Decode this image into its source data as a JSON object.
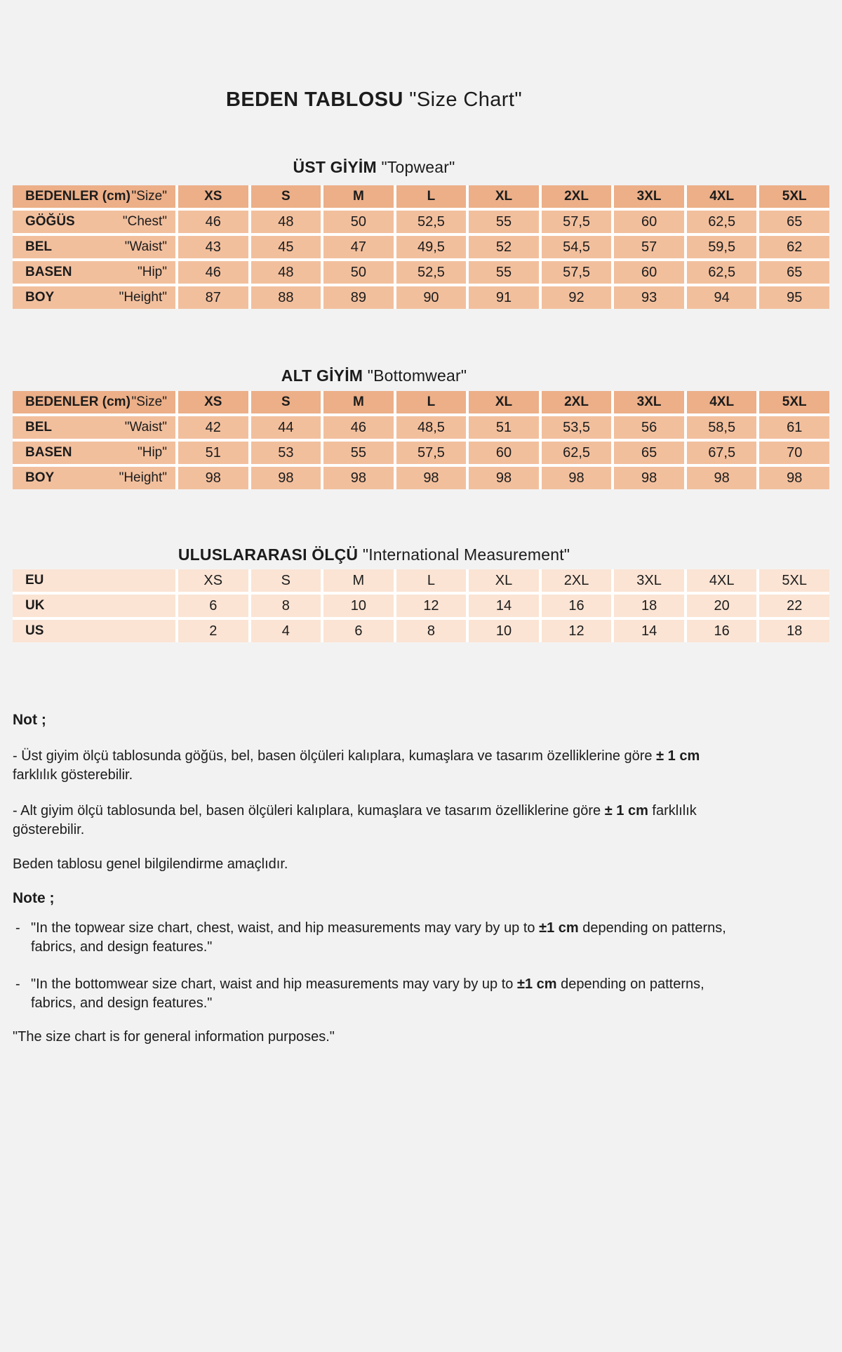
{
  "title": {
    "tr": "BEDEN TABLOSU",
    "en": "\"Size Chart\""
  },
  "sizes": [
    "XS",
    "S",
    "M",
    "L",
    "XL",
    "2XL",
    "3XL",
    "4XL",
    "5XL"
  ],
  "topwear": {
    "heading_tr": "ÜST GİYİM",
    "heading_en": "\"Topwear\"",
    "header_label_tr": "BEDENLER (cm)",
    "header_label_en": "\"Size\"",
    "rows": [
      {
        "label_tr": "GÖĞÜS",
        "label_en": "\"Chest\"",
        "values": [
          "46",
          "48",
          "50",
          "52,5",
          "55",
          "57,5",
          "60",
          "62,5",
          "65"
        ]
      },
      {
        "label_tr": "BEL",
        "label_en": "\"Waist\"",
        "values": [
          "43",
          "45",
          "47",
          "49,5",
          "52",
          "54,5",
          "57",
          "59,5",
          "62"
        ]
      },
      {
        "label_tr": "BASEN",
        "label_en": "\"Hip\"",
        "values": [
          "46",
          "48",
          "50",
          "52,5",
          "55",
          "57,5",
          "60",
          "62,5",
          "65"
        ]
      },
      {
        "label_tr": "BOY",
        "label_en": "\"Height\"",
        "values": [
          "87",
          "88",
          "89",
          "90",
          "91",
          "92",
          "93",
          "94",
          "95"
        ]
      }
    ]
  },
  "bottomwear": {
    "heading_tr": "ALT GİYİM",
    "heading_en": "\"Bottomwear\"",
    "header_label_tr": "BEDENLER (cm)",
    "header_label_en": "\"Size\"",
    "rows": [
      {
        "label_tr": "BEL",
        "label_en": "\"Waist\"",
        "values": [
          "42",
          "44",
          "46",
          "48,5",
          "51",
          "53,5",
          "56",
          "58,5",
          "61"
        ]
      },
      {
        "label_tr": "BASEN",
        "label_en": "\"Hip\"",
        "values": [
          "51",
          "53",
          "55",
          "57,5",
          "60",
          "62,5",
          "65",
          "67,5",
          "70"
        ]
      },
      {
        "label_tr": "BOY",
        "label_en": "\"Height\"",
        "values": [
          "98",
          "98",
          "98",
          "98",
          "98",
          "98",
          "98",
          "98",
          "98"
        ]
      }
    ]
  },
  "international": {
    "heading_tr": "ULUSLARARASI  ÖLÇÜ",
    "heading_en": "\"International Measurement\"",
    "rows": [
      {
        "label": "EU",
        "values": [
          "XS",
          "S",
          "M",
          "L",
          "XL",
          "2XL",
          "3XL",
          "4XL",
          "5XL"
        ]
      },
      {
        "label": "UK",
        "values": [
          "6",
          "8",
          "10",
          "12",
          "14",
          "16",
          "18",
          "20",
          "22"
        ]
      },
      {
        "label": "US",
        "values": [
          "2",
          "4",
          "6",
          "8",
          "10",
          "12",
          "14",
          "16",
          "18"
        ]
      }
    ]
  },
  "notes_tr": {
    "heading": "Not ;",
    "item1": {
      "pre": "- Üst giyim ölçü tablosunda göğüs, bel, basen ölçüleri kalıplara, kumaşlara ve tasarım özelliklerine göre ",
      "bold": "± 1 cm",
      "post": " farklılık gösterebilir."
    },
    "item2": {
      "pre": "- Alt giyim ölçü tablosunda bel, basen ölçüleri kalıplara, kumaşlara ve tasarım özelliklerine göre ",
      "bold": "± 1 cm",
      "post": " farklılık gösterebilir."
    },
    "footer": "Beden tablosu genel bilgilendirme amaçlıdır."
  },
  "notes_en": {
    "heading": "Note ;",
    "item1": {
      "bullet": "-",
      "pre": "\"In the topwear size chart, chest, waist, and hip measurements may vary by up to ",
      "bold": "±1 cm",
      "post": " depending on patterns, fabrics, and design features.\""
    },
    "item2": {
      "bullet": "-",
      "pre": "\"In the bottomwear size chart, waist and hip measurements may vary by up to ",
      "bold": "±1 cm",
      "post": " depending on patterns, fabrics, and design features.\""
    },
    "footer": "\"The size chart is for general information purposes.\""
  },
  "colors": {
    "page_bg": "#f2f2f2",
    "table_header_bg": "#ecaf88",
    "table_cell_bg": "#f2bf9d",
    "intl_cell_bg": "#fbe4d4",
    "grid_line": "#ffffff",
    "text": "#1c1c1c"
  }
}
